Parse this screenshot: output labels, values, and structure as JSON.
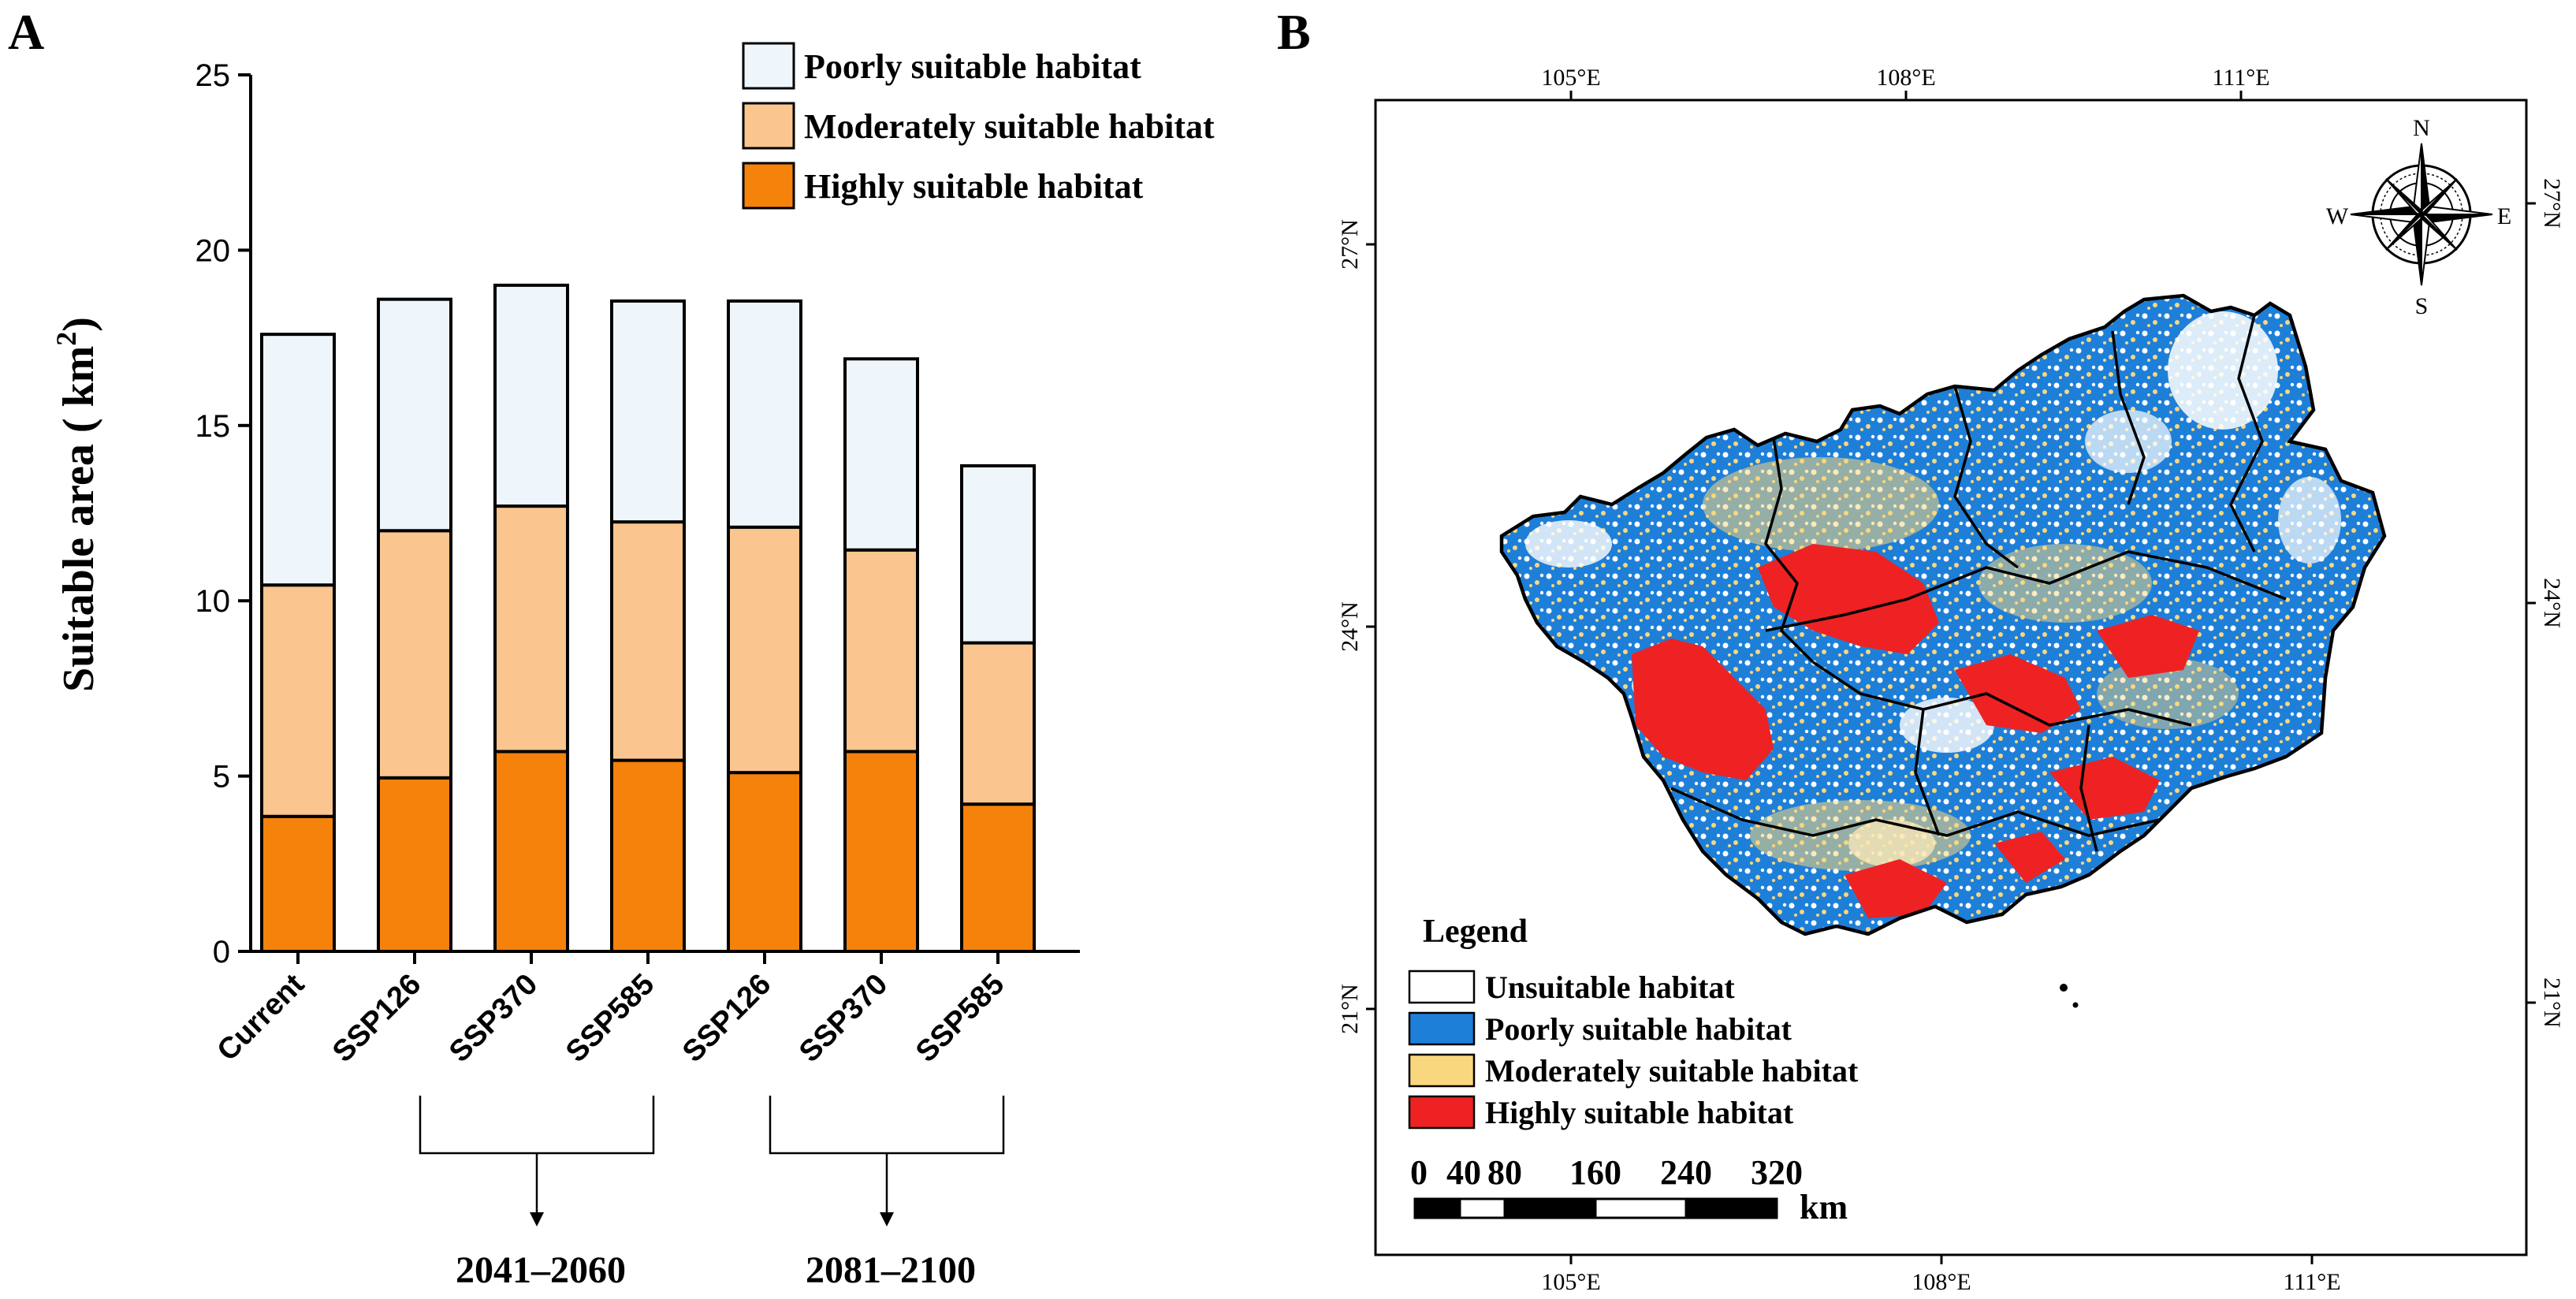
{
  "panel_a": {
    "letter": "A",
    "chart_data": {
      "type": "bar",
      "stacked": true,
      "title": "",
      "ylabel_text": "Suitable area ( km",
      "ylabel_sup": "2",
      "ylabel_close": ")",
      "ylim": [
        0,
        25
      ],
      "yticks": [
        0,
        5,
        10,
        15,
        20,
        25
      ],
      "categories": [
        "Current",
        "SSP126",
        "SSP370",
        "SSP585",
        "SSP126",
        "SSP370",
        "SSP585"
      ],
      "series": [
        {
          "name": "Highly suitable habitat",
          "color": "#F5820A",
          "values": [
            3.85,
            4.95,
            5.7,
            5.45,
            5.1,
            5.7,
            4.2
          ]
        },
        {
          "name": "Moderately suitable habitat",
          "color": "#FAC58E",
          "values": [
            6.6,
            7.05,
            7.0,
            6.8,
            7.0,
            5.75,
            4.6
          ]
        },
        {
          "name": "Poorly suitable habitat",
          "color": "#EEF6FB",
          "values": [
            7.15,
            6.6,
            6.3,
            6.3,
            6.45,
            5.45,
            5.05
          ]
        }
      ],
      "legend_position": "top-right",
      "groups": [
        {
          "label": "2041–2060",
          "from": 1,
          "to": 3
        },
        {
          "label": "2081–2100",
          "from": 4,
          "to": 6
        }
      ]
    }
  },
  "panel_b": {
    "letter": "B",
    "top_lon_labels": [
      "105°E",
      "108°E",
      "111°E"
    ],
    "bottom_lon_labels": [
      "105°E",
      "108°E",
      "111°E"
    ],
    "left_lat_labels": [
      "27°N",
      "24°N",
      "21°N"
    ],
    "right_lat_labels": [
      "27°N",
      "24°N",
      "21°N"
    ],
    "compass": {
      "n": "N",
      "s": "S",
      "e": "E",
      "w": "W"
    },
    "legend": {
      "title": "Legend",
      "items": [
        {
          "label": "Unsuitable habitat",
          "color": "#FFFFFF"
        },
        {
          "label": "Poorly suitable habitat",
          "color": "#1E7FD8"
        },
        {
          "label": "Moderately suitable habitat",
          "color": "#F9D77E"
        },
        {
          "label": "Highly suitable habitat",
          "color": "#EE2222"
        }
      ]
    },
    "scale_bar": {
      "ticks": [
        "0",
        "40",
        "80",
        "160",
        "240",
        "320"
      ],
      "unit": "km"
    }
  }
}
